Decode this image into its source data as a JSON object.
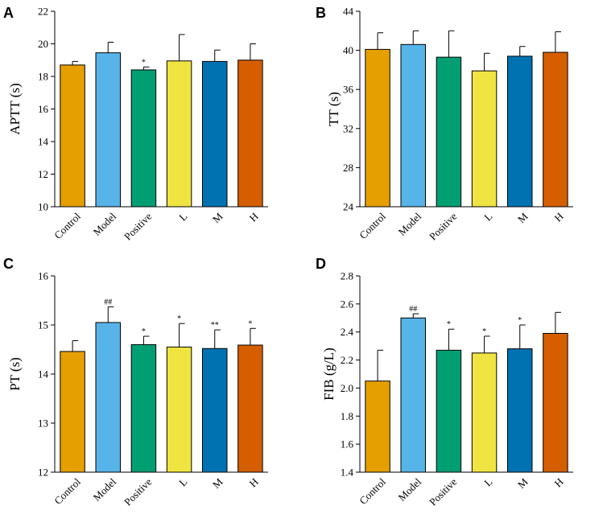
{
  "chart_data": [
    {
      "panel": "A",
      "type": "bar",
      "title": "",
      "xlabel": "",
      "ylabel": "APTT (s)",
      "categories": [
        "Control",
        "Model",
        "Positive",
        "L",
        "M",
        "H"
      ],
      "values": [
        18.7,
        19.45,
        18.4,
        18.95,
        18.92,
        19.0
      ],
      "errors": [
        0.22,
        0.65,
        0.18,
        1.62,
        0.7,
        1.0
      ],
      "significance": [
        "",
        "",
        "*",
        "",
        "",
        ""
      ],
      "colors": [
        "#E69F00",
        "#56B4E9",
        "#009E73",
        "#F0E442",
        "#0072B2",
        "#D55E00"
      ],
      "ylim": [
        10,
        22
      ],
      "yticks": [
        "10",
        "12",
        "14",
        "16",
        "18",
        "20",
        "22"
      ]
    },
    {
      "panel": "B",
      "type": "bar",
      "title": "",
      "xlabel": "",
      "ylabel": "TT (s)",
      "categories": [
        "Control",
        "Model",
        "Positive",
        "L",
        "M",
        "H"
      ],
      "values": [
        40.1,
        40.6,
        39.3,
        37.9,
        39.4,
        39.8
      ],
      "errors": [
        1.7,
        1.4,
        2.7,
        1.8,
        1.0,
        2.1
      ],
      "significance": [
        "",
        "",
        "",
        "",
        "",
        ""
      ],
      "colors": [
        "#E69F00",
        "#56B4E9",
        "#009E73",
        "#F0E442",
        "#0072B2",
        "#D55E00"
      ],
      "ylim": [
        24,
        44
      ],
      "yticks": [
        "24",
        "28",
        "32",
        "36",
        "40",
        "44"
      ]
    },
    {
      "panel": "C",
      "type": "bar",
      "title": "",
      "xlabel": "",
      "ylabel": "PT (s)",
      "categories": [
        "Control",
        "Model",
        "Positive",
        "L",
        "M",
        "H"
      ],
      "values": [
        14.46,
        15.05,
        14.6,
        14.55,
        14.52,
        14.59
      ],
      "errors": [
        0.22,
        0.32,
        0.17,
        0.48,
        0.38,
        0.34
      ],
      "significance": [
        "",
        "##",
        "*",
        "*",
        "**",
        "*"
      ],
      "colors": [
        "#E69F00",
        "#56B4E9",
        "#009E73",
        "#F0E442",
        "#0072B2",
        "#D55E00"
      ],
      "ylim": [
        12,
        16
      ],
      "yticks": [
        "12",
        "13",
        "14",
        "15",
        "16"
      ]
    },
    {
      "panel": "D",
      "type": "bar",
      "title": "",
      "xlabel": "",
      "ylabel": "FIB (g/L)",
      "categories": [
        "Control",
        "Model",
        "Positive",
        "L",
        "M",
        "H"
      ],
      "values": [
        2.05,
        2.5,
        2.27,
        2.25,
        2.28,
        2.39
      ],
      "errors": [
        0.22,
        0.03,
        0.15,
        0.12,
        0.17,
        0.15
      ],
      "significance": [
        "",
        "##",
        "*",
        "*",
        "*",
        ""
      ],
      "colors": [
        "#E69F00",
        "#56B4E9",
        "#009E73",
        "#F0E442",
        "#0072B2",
        "#D55E00"
      ],
      "ylim": [
        1.4,
        2.8
      ],
      "yticks": [
        "1.4",
        "1.6",
        "1.8",
        "2.0",
        "2.2",
        "2.4",
        "2.6",
        "2.8"
      ]
    }
  ]
}
